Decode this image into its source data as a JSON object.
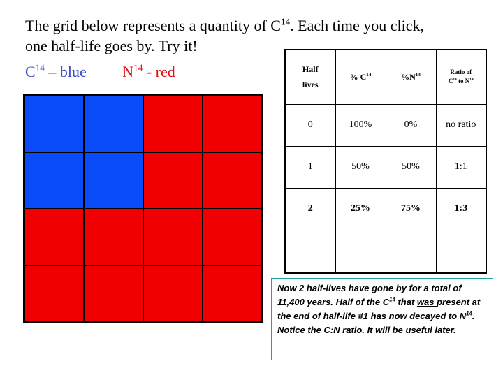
{
  "title": {
    "line1_pre": "The grid below represents a quantity of C",
    "line1_sup": "14",
    "line1_post": ". Each time you click,",
    "line2": "one half-life goes by. Try it!"
  },
  "legend": {
    "carbon_label": "C",
    "carbon_sup": "14",
    "carbon_text": " – blue",
    "nitrogen_label": "N",
    "nitrogen_sup": "14",
    "nitrogen_text": " - red"
  },
  "colors": {
    "carbon": "#0a4bfa",
    "nitrogen": "#f00000",
    "legend_blue": "#3a4ec8",
    "legend_red": "#e01010"
  },
  "grid": {
    "rows": [
      [
        "C",
        "C",
        "N",
        "N"
      ],
      [
        "C",
        "C",
        "N",
        "N"
      ],
      [
        "N",
        "N",
        "N",
        "N"
      ],
      [
        "N",
        "N",
        "N",
        "N"
      ]
    ]
  },
  "table": {
    "headers": {
      "half_lives_1": "Half",
      "half_lives_2": "lives",
      "pct_c": "% C",
      "pct_c_sup": "14",
      "pct_n": "%N",
      "pct_n_sup": "14",
      "ratio_1": "Ratio of",
      "ratio_2_pre": "C",
      "ratio_2_sup1": "14",
      "ratio_2_mid": " to N",
      "ratio_2_sup2": "14"
    },
    "rows": [
      {
        "half_lives": "0",
        "pct_c": "100%",
        "pct_n": "0%",
        "ratio": "no ratio"
      },
      {
        "half_lives": "1",
        "pct_c": "50%",
        "pct_n": "50%",
        "ratio": "1:1"
      },
      {
        "half_lives": "2",
        "pct_c": "25%",
        "pct_n": "75%",
        "ratio": "1:3"
      },
      {
        "half_lives": "",
        "pct_c": "",
        "pct_n": "",
        "ratio": ""
      }
    ]
  },
  "note": {
    "p1": "Now 2 half-lives have gone by for a total of  11,400 years. Half of the C",
    "p1_sup": "14",
    "p2": " that ",
    "p2_u": "was ",
    "p3": "present at the end of half-life #1 has now decayed to N",
    "p3_sup": "14",
    "p4": ". Notice the C:N ratio. It will be useful later."
  }
}
